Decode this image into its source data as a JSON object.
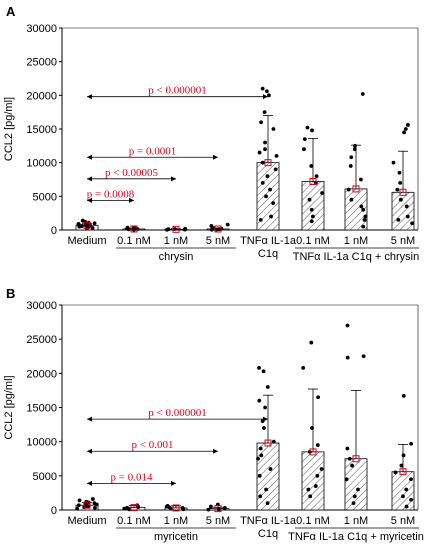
{
  "chart_data": [
    {
      "type": "bar",
      "panel": "A",
      "ylabel": "CCL2 [pg/ml]",
      "ylim": [
        0,
        30000
      ],
      "yticks": [
        "0",
        "5000",
        "10000",
        "15000",
        "20000",
        "25000",
        "30000"
      ],
      "tick_values": [
        0,
        5000,
        10000,
        15000,
        20000,
        25000,
        30000
      ],
      "categories": [
        "Medium",
        "0.1 nM",
        "1 nM",
        "5 nM",
        "TNFα IL-1a",
        "0.1 nM",
        "1 nM",
        "5 nM"
      ],
      "category_sublabels": [
        "",
        "",
        "",
        "",
        "C1q",
        "",
        "",
        ""
      ],
      "group_labels": [
        "chrysin",
        "TNFα IL-1a C1q + chrysin"
      ],
      "hatched": [
        false,
        false,
        false,
        false,
        true,
        true,
        true,
        true
      ],
      "values": [
        700,
        150,
        100,
        150,
        10000,
        7200,
        6100,
        5600
      ],
      "errors": [
        300,
        100,
        80,
        150,
        7000,
        6400,
        6500,
        6100
      ],
      "points": [
        [
          200,
          400,
          500,
          600,
          700,
          800,
          900,
          1000,
          1100,
          1200,
          1400,
          300,
          650,
          850
        ],
        [
          50,
          100,
          150,
          200,
          250,
          300,
          350
        ],
        [
          30,
          60,
          90,
          120,
          150,
          180
        ],
        [
          40,
          80,
          120,
          180,
          300,
          600,
          800
        ],
        [
          20600,
          21000,
          20000,
          17500,
          16000,
          15000,
          13000,
          12000,
          11500,
          11000,
          10000,
          9000,
          8000,
          7000,
          6000,
          5000,
          4000,
          2000,
          1500
        ],
        [
          15200,
          14800,
          13500,
          12000,
          9500,
          8000,
          7000,
          5500,
          4500,
          3000,
          2000,
          1300
        ],
        [
          20200,
          12500,
          12000,
          10800,
          9500,
          7500,
          6000,
          4500,
          3500,
          3000,
          2000,
          1500,
          500
        ],
        [
          15600,
          15000,
          14500,
          10000,
          8500,
          7000,
          6000,
          4500,
          3500,
          2000,
          1500,
          1000
        ]
      ],
      "annotations": [
        {
          "text": "p < 0.000001",
          "y": 19800,
          "from": 0,
          "to": 4
        },
        {
          "text": "p = 0.0001",
          "y": 10800,
          "from": 0,
          "to": 3
        },
        {
          "text": "p < 0.00005",
          "y": 7600,
          "from": 0,
          "to": 2
        },
        {
          "text": "p = 0.0008",
          "y": 4400,
          "from": 0,
          "to": 1
        }
      ]
    },
    {
      "type": "bar",
      "panel": "B",
      "ylabel": "CCL2 [pg/ml]",
      "ylim": [
        0,
        30000
      ],
      "yticks": [
        "0",
        "5000",
        "10000",
        "15000",
        "20000",
        "25000",
        "30000"
      ],
      "tick_values": [
        0,
        5000,
        10000,
        15000,
        20000,
        25000,
        30000
      ],
      "categories": [
        "Medium",
        "0.1 nM",
        "1 nM",
        "5 nM",
        "TNFα IL-1a",
        "0.1 nM",
        "1 nM",
        "5 nM"
      ],
      "category_sublabels": [
        "",
        "",
        "",
        "",
        "C1q",
        "",
        "",
        ""
      ],
      "group_labels": [
        "myricetin",
        "TNFα IL-1a C1q + myricetin"
      ],
      "hatched": [
        false,
        false,
        false,
        false,
        true,
        true,
        true,
        true
      ],
      "values": [
        700,
        350,
        300,
        200,
        9800,
        8500,
        7500,
        5600
      ],
      "errors": [
        400,
        300,
        300,
        200,
        7000,
        9200,
        10000,
        4000
      ],
      "points": [
        [
          200,
          400,
          500,
          600,
          700,
          800,
          900,
          1000,
          1100,
          1200,
          1400,
          1600,
          300
        ],
        [
          100,
          200,
          300,
          400,
          500,
          700
        ],
        [
          100,
          200,
          300,
          400,
          500,
          600
        ],
        [
          50,
          100,
          200,
          300,
          500,
          800
        ],
        [
          20800,
          20300,
          18000,
          16000,
          15000,
          13000,
          12000,
          10000,
          9000,
          8000,
          7500,
          6000,
          5000,
          3000,
          2000,
          1000
        ],
        [
          24500,
          20800,
          16500,
          12000,
          9500,
          8500,
          6000,
          5000,
          3500,
          3000,
          2000
        ],
        [
          27000,
          22500,
          22300,
          9000,
          7500,
          6500,
          4500,
          3000,
          2000,
          1000
        ],
        [
          16700,
          9700,
          8000,
          6500,
          5500,
          4500,
          3000,
          2000,
          1500,
          500
        ]
      ],
      "annotations": [
        {
          "text": "p < 0.000001",
          "y": 13300,
          "from": 0,
          "to": 4
        },
        {
          "text": "p < 0.001",
          "y": 8600,
          "from": 0,
          "to": 3
        },
        {
          "text": "p = 0.014",
          "y": 3900,
          "from": 0,
          "to": 2
        }
      ]
    }
  ]
}
